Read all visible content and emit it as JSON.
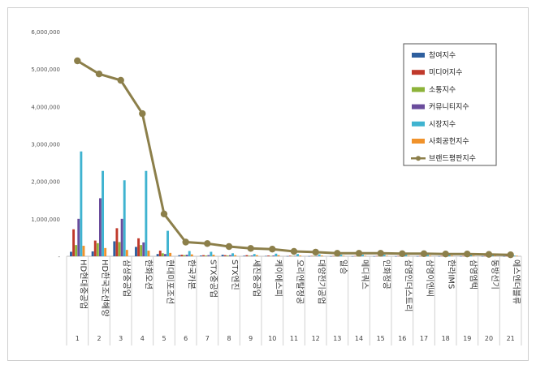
{
  "chart_data": {
    "type": "bar",
    "title": "",
    "xlabel": "",
    "ylabel": "",
    "ylim": [
      0,
      6000000
    ],
    "yticks": [
      0,
      1000000,
      2000000,
      3000000,
      4000000,
      5000000,
      6000000
    ],
    "ytick_labels": [
      "-",
      "1,000,000",
      "2,000,000",
      "3,000,000",
      "4,000,000",
      "5,000,000",
      "6,000,000"
    ],
    "legend_position": "top-right",
    "categories": [
      "HD현대중공업",
      "HD한국조선해양",
      "삼성중공업",
      "한화오션",
      "현대미포조선",
      "한국카본",
      "STX중공업",
      "STX엔진",
      "세진중공업",
      "케이에스피",
      "오리엔탈정공",
      "대양전기공업",
      "일승",
      "메디쿼스",
      "인화정공",
      "삼영인더스트리",
      "삼영이엔씨",
      "한라IMS",
      "삼영엠텍",
      "동방선기",
      "에스엔더블류"
    ],
    "ranks": [
      "1",
      "2",
      "3",
      "4",
      "5",
      "6",
      "7",
      "8",
      "9",
      "10",
      "11",
      "12",
      "13",
      "14",
      "15",
      "16",
      "17",
      "18",
      "19",
      "20",
      "21"
    ],
    "series": [
      {
        "name": "참여지수",
        "color": "#2e5f9e",
        "values": [
          120000,
          130000,
          400000,
          250000,
          60000,
          30000,
          20000,
          40000,
          15000,
          10000,
          5000,
          5000,
          3000,
          3000,
          3000,
          3000,
          3000,
          3000,
          3000,
          3000,
          3000
        ]
      },
      {
        "name": "미디어지수",
        "color": "#c0392b",
        "values": [
          720000,
          420000,
          750000,
          480000,
          150000,
          40000,
          30000,
          30000,
          30000,
          20000,
          15000,
          10000,
          8000,
          8000,
          8000,
          8000,
          8000,
          8000,
          8000,
          8000,
          8000
        ]
      },
      {
        "name": "소통지수",
        "color": "#8db33a",
        "values": [
          300000,
          350000,
          380000,
          300000,
          80000,
          30000,
          20000,
          20000,
          15000,
          10000,
          10000,
          8000,
          5000,
          5000,
          5000,
          5000,
          5000,
          5000,
          5000,
          5000,
          5000
        ]
      },
      {
        "name": "커뮤니티지수",
        "color": "#6a4c9c",
        "values": [
          1000000,
          1550000,
          1000000,
          370000,
          60000,
          40000,
          30000,
          30000,
          20000,
          20000,
          10000,
          8000,
          5000,
          5000,
          5000,
          5000,
          5000,
          5000,
          5000,
          5000,
          5000
        ]
      },
      {
        "name": "시장지수",
        "color": "#3fb3d0",
        "values": [
          2800000,
          2280000,
          2030000,
          2280000,
          680000,
          140000,
          120000,
          80000,
          60000,
          70000,
          60000,
          50000,
          40000,
          40000,
          40000,
          40000,
          40000,
          40000,
          30000,
          30000,
          20000
        ]
      },
      {
        "name": "사회공헌지수",
        "color": "#f0922b",
        "values": [
          280000,
          220000,
          170000,
          150000,
          90000,
          50000,
          40000,
          30000,
          30000,
          30000,
          20000,
          20000,
          15000,
          15000,
          15000,
          15000,
          15000,
          15000,
          15000,
          15000,
          15000
        ]
      }
    ],
    "line": {
      "name": "브랜드평판지수",
      "color": "#8c7f4a",
      "values": [
        5220000,
        4870000,
        4700000,
        3810000,
        1130000,
        380000,
        340000,
        260000,
        210000,
        190000,
        130000,
        110000,
        80000,
        80000,
        80000,
        70000,
        70000,
        60000,
        60000,
        50000,
        40000
      ]
    }
  }
}
